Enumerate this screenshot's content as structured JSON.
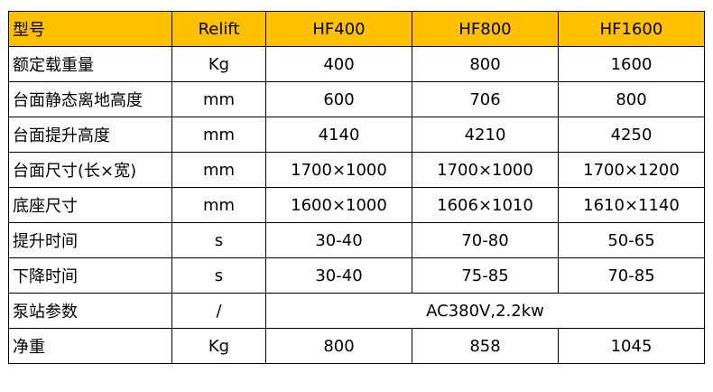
{
  "colors": {
    "header_bg": "#FFC000",
    "border": "#000000"
  },
  "header": [
    "型号",
    "Relift",
    "HF400",
    "HF800",
    "HF1600"
  ],
  "rows": [
    {
      "label": "额定载重量",
      "unit": "Kg",
      "values": [
        "400",
        "800",
        "1600"
      ]
    },
    {
      "label": "台面静态离地高度",
      "unit": "mm",
      "values": [
        "600",
        "706",
        "800"
      ]
    },
    {
      "label": "台面提升高度",
      "unit": "mm",
      "values": [
        "4140",
        "4210",
        "4250"
      ]
    },
    {
      "label": "台面尺寸(长×宽)",
      "unit": "mm",
      "values": [
        "1700×1000",
        "1700×1000",
        "1700×1200"
      ]
    },
    {
      "label": "底座尺寸",
      "unit": "mm",
      "values": [
        "1600×1000",
        "1606×1010",
        "1610×1140"
      ]
    },
    {
      "label": "提升时间",
      "unit": "s",
      "values": [
        "30-40",
        "70-80",
        "50-65"
      ]
    },
    {
      "label": "下降时间",
      "unit": "s",
      "values": [
        "30-40",
        "75-85",
        "70-85"
      ]
    },
    {
      "label": "泵站参数",
      "unit": "/",
      "merged": "AC380V,2.2kw"
    },
    {
      "label": "净重",
      "unit": "Kg",
      "values": [
        "800",
        "858",
        "1045"
      ]
    }
  ]
}
